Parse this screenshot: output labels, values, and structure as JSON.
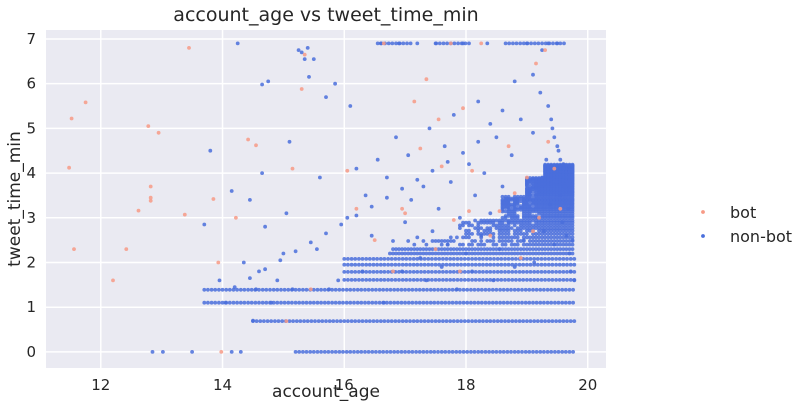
{
  "chart_data": {
    "type": "scatter",
    "title": "account_age vs tweet_time_min",
    "xlabel": "account_age",
    "ylabel": "tweet_time_min",
    "xlim": [
      11.1,
      20.3
    ],
    "ylim": [
      -0.36,
      7.2
    ],
    "xticks": [
      12,
      14,
      16,
      18,
      20
    ],
    "yticks": [
      0,
      1,
      2,
      3,
      4,
      5,
      6,
      7
    ],
    "grid": true,
    "legend": {
      "placement": "right",
      "entries": [
        "bot",
        "non-bot"
      ]
    },
    "colors": {
      "bot": "#f79a86",
      "non-bot": "#4a6fdc",
      "background": "#eaeaf2",
      "grid": "#ffffff"
    },
    "series": [
      {
        "name": "bot",
        "color": "#f79a86",
        "points": [
          [
            11.48,
            4.12
          ],
          [
            11.52,
            5.22
          ],
          [
            11.56,
            2.3
          ],
          [
            11.75,
            5.58
          ],
          [
            12.2,
            1.6
          ],
          [
            12.42,
            2.3
          ],
          [
            12.62,
            3.16
          ],
          [
            12.78,
            5.05
          ],
          [
            12.82,
            3.38
          ],
          [
            12.82,
            3.45
          ],
          [
            12.82,
            3.7
          ],
          [
            12.95,
            4.9
          ],
          [
            13.38,
            3.07
          ],
          [
            13.45,
            6.8
          ],
          [
            13.85,
            3.42
          ],
          [
            13.93,
            2.0
          ],
          [
            13.98,
            0.0
          ],
          [
            14.22,
            3.0
          ],
          [
            14.42,
            4.75
          ],
          [
            14.55,
            4.62
          ],
          [
            15.05,
            0.69
          ],
          [
            15.15,
            4.1
          ],
          [
            15.3,
            5.88
          ],
          [
            15.35,
            6.65
          ],
          [
            15.45,
            1.4
          ],
          [
            16.05,
            4.05
          ],
          [
            16.2,
            3.2
          ],
          [
            16.5,
            2.5
          ],
          [
            16.65,
            6.9
          ],
          [
            16.8,
            1.8
          ],
          [
            16.95,
            3.2
          ],
          [
            17.0,
            3.1
          ],
          [
            17.15,
            5.6
          ],
          [
            17.25,
            4.55
          ],
          [
            17.35,
            6.1
          ],
          [
            17.5,
            2.3
          ],
          [
            17.55,
            5.2
          ],
          [
            17.6,
            4.15
          ],
          [
            17.75,
            6.9
          ],
          [
            17.8,
            2.95
          ],
          [
            17.9,
            1.8
          ],
          [
            17.95,
            5.45
          ],
          [
            18.05,
            3.15
          ],
          [
            18.1,
            4.05
          ],
          [
            18.25,
            6.9
          ],
          [
            18.4,
            2.6
          ],
          [
            18.55,
            3.15
          ],
          [
            18.7,
            4.6
          ],
          [
            18.8,
            3.55
          ],
          [
            18.9,
            2.1
          ],
          [
            19.0,
            3.9
          ],
          [
            19.1,
            2.7
          ],
          [
            19.15,
            6.45
          ],
          [
            19.2,
            3.0
          ],
          [
            19.3,
            6.75
          ],
          [
            19.35,
            4.7
          ],
          [
            19.45,
            4.1
          ],
          [
            19.55,
            3.2
          ]
        ]
      },
      {
        "name": "non-bot",
        "color": "#4a6fdc",
        "points": [
          [
            12.85,
            0.0
          ],
          [
            13.02,
            0.0
          ],
          [
            13.5,
            0.0
          ],
          [
            14.15,
            0.0
          ],
          [
            14.3,
            0.0
          ],
          [
            14.25,
            6.9
          ],
          [
            14.65,
            5.98
          ],
          [
            14.75,
            6.05
          ],
          [
            13.7,
            2.85
          ],
          [
            13.8,
            4.5
          ],
          [
            13.95,
            1.6
          ],
          [
            14.05,
            1.1
          ],
          [
            14.15,
            3.6
          ],
          [
            14.35,
            2.0
          ],
          [
            14.45,
            3.4
          ],
          [
            14.5,
            0.7
          ],
          [
            14.55,
            1.4
          ],
          [
            14.6,
            1.8
          ],
          [
            14.65,
            4.0
          ],
          [
            14.7,
            2.8
          ],
          [
            14.8,
            1.1
          ],
          [
            14.9,
            1.6
          ],
          [
            15.0,
            2.2
          ],
          [
            15.05,
            3.1
          ],
          [
            15.1,
            4.7
          ],
          [
            15.15,
            1.4
          ],
          [
            15.25,
            6.75
          ],
          [
            15.3,
            6.7
          ],
          [
            15.35,
            6.55
          ],
          [
            15.4,
            6.8
          ],
          [
            15.42,
            6.15
          ],
          [
            15.5,
            6.55
          ],
          [
            15.55,
            2.3
          ],
          [
            15.6,
            3.9
          ],
          [
            15.7,
            5.7
          ],
          [
            15.75,
            1.4
          ],
          [
            15.85,
            6.0
          ],
          [
            15.9,
            1.6
          ],
          [
            16.05,
            3.0
          ],
          [
            16.1,
            5.5
          ],
          [
            16.2,
            4.1
          ],
          [
            16.3,
            1.8
          ],
          [
            16.35,
            3.5
          ],
          [
            16.45,
            2.6
          ],
          [
            16.55,
            4.3
          ],
          [
            16.6,
            6.9
          ],
          [
            16.65,
            1.1
          ],
          [
            16.7,
            3.9
          ],
          [
            16.75,
            2.2
          ],
          [
            16.85,
            4.8
          ],
          [
            16.9,
            6.9
          ],
          [
            16.95,
            1.8
          ],
          [
            17.0,
            2.9
          ],
          [
            17.05,
            4.4
          ],
          [
            17.1,
            3.4
          ],
          [
            17.2,
            6.9
          ],
          [
            17.25,
            2.1
          ],
          [
            17.3,
            3.7
          ],
          [
            17.35,
            1.6
          ],
          [
            17.4,
            5.0
          ],
          [
            17.45,
            2.7
          ],
          [
            17.5,
            6.9
          ],
          [
            17.55,
            3.2
          ],
          [
            17.6,
            1.9
          ],
          [
            17.65,
            4.6
          ],
          [
            17.7,
            2.4
          ],
          [
            17.75,
            3.8
          ],
          [
            17.8,
            5.3
          ],
          [
            17.85,
            1.4
          ],
          [
            17.9,
            3.0
          ],
          [
            17.95,
            6.9
          ],
          [
            18.0,
            2.2
          ],
          [
            18.05,
            4.2
          ],
          [
            18.1,
            1.8
          ],
          [
            18.15,
            3.5
          ],
          [
            18.2,
            5.6
          ],
          [
            18.25,
            2.6
          ],
          [
            18.3,
            4.0
          ],
          [
            18.35,
            6.9
          ],
          [
            18.4,
            3.1
          ],
          [
            18.45,
            1.6
          ],
          [
            18.5,
            4.8
          ],
          [
            18.55,
            2.3
          ],
          [
            18.6,
            3.7
          ],
          [
            18.65,
            6.9
          ],
          [
            18.7,
            2.9
          ],
          [
            18.75,
            4.4
          ],
          [
            18.8,
            1.9
          ],
          [
            18.85,
            3.3
          ],
          [
            18.9,
            5.2
          ],
          [
            18.95,
            2.5
          ],
          [
            19.0,
            6.9
          ],
          [
            19.05,
            3.6
          ],
          [
            19.1,
            4.9
          ],
          [
            19.12,
            2.0
          ],
          [
            19.18,
            3.0
          ],
          [
            19.22,
            5.8
          ],
          [
            19.25,
            3.9
          ],
          [
            19.28,
            2.7
          ],
          [
            19.32,
            4.3
          ],
          [
            19.35,
            6.9
          ],
          [
            19.38,
            3.3
          ],
          [
            19.42,
            5.0
          ],
          [
            19.45,
            2.4
          ],
          [
            19.48,
            3.8
          ],
          [
            19.5,
            6.9
          ],
          [
            19.52,
            4.5
          ],
          [
            19.55,
            3.5
          ],
          [
            19.58,
            2.9
          ],
          [
            19.6,
            4.1
          ],
          [
            19.62,
            3.7
          ],
          [
            19.65,
            2.6
          ],
          [
            19.68,
            3.2
          ],
          [
            19.7,
            2.2
          ],
          [
            19.72,
            1.8
          ],
          [
            19.75,
            2.5
          ],
          [
            19.78,
            1.6
          ],
          [
            19.35,
            5.5
          ],
          [
            19.4,
            5.2
          ],
          [
            19.45,
            4.8
          ],
          [
            19.5,
            4.6
          ],
          [
            19.55,
            4.3
          ],
          [
            19.6,
            4.2
          ],
          [
            19.25,
            6.75
          ],
          [
            19.1,
            6.2
          ],
          [
            18.8,
            6.05
          ],
          [
            18.6,
            5.4
          ],
          [
            18.4,
            5.1
          ],
          [
            18.2,
            4.7
          ],
          [
            17.95,
            4.45
          ],
          [
            17.7,
            4.25
          ],
          [
            17.45,
            4.05
          ],
          [
            17.2,
            3.85
          ],
          [
            16.95,
            3.65
          ],
          [
            16.7,
            3.45
          ],
          [
            16.45,
            3.25
          ],
          [
            16.2,
            3.05
          ],
          [
            15.95,
            2.85
          ],
          [
            15.7,
            2.65
          ],
          [
            15.45,
            2.45
          ],
          [
            15.2,
            2.25
          ],
          [
            14.95,
            2.05
          ],
          [
            14.7,
            1.85
          ],
          [
            14.45,
            1.65
          ],
          [
            14.2,
            1.45
          ]
        ]
      }
    ],
    "dense_rows": [
      0.0,
      0.69,
      1.1,
      1.39,
      1.61,
      1.79,
      1.95,
      2.08,
      2.2,
      2.3,
      2.4,
      2.48,
      2.56,
      2.64,
      2.71,
      2.77,
      2.83,
      2.89,
      2.94,
      3.0,
      3.04,
      3.09,
      3.14,
      3.18,
      3.22,
      3.26,
      3.3,
      3.33,
      3.37,
      3.4,
      3.43,
      3.47,
      3.5,
      3.53,
      3.56,
      3.58,
      3.61,
      3.64,
      3.66,
      3.69,
      3.71,
      3.74,
      3.76,
      3.78,
      3.81,
      3.83,
      3.85,
      3.87,
      3.89,
      3.91,
      3.93,
      3.95,
      3.97,
      3.99,
      4.01,
      4.03,
      4.04,
      4.06,
      4.08,
      4.09,
      4.11,
      4.13,
      4.14,
      4.16,
      4.17,
      4.19
    ]
  }
}
